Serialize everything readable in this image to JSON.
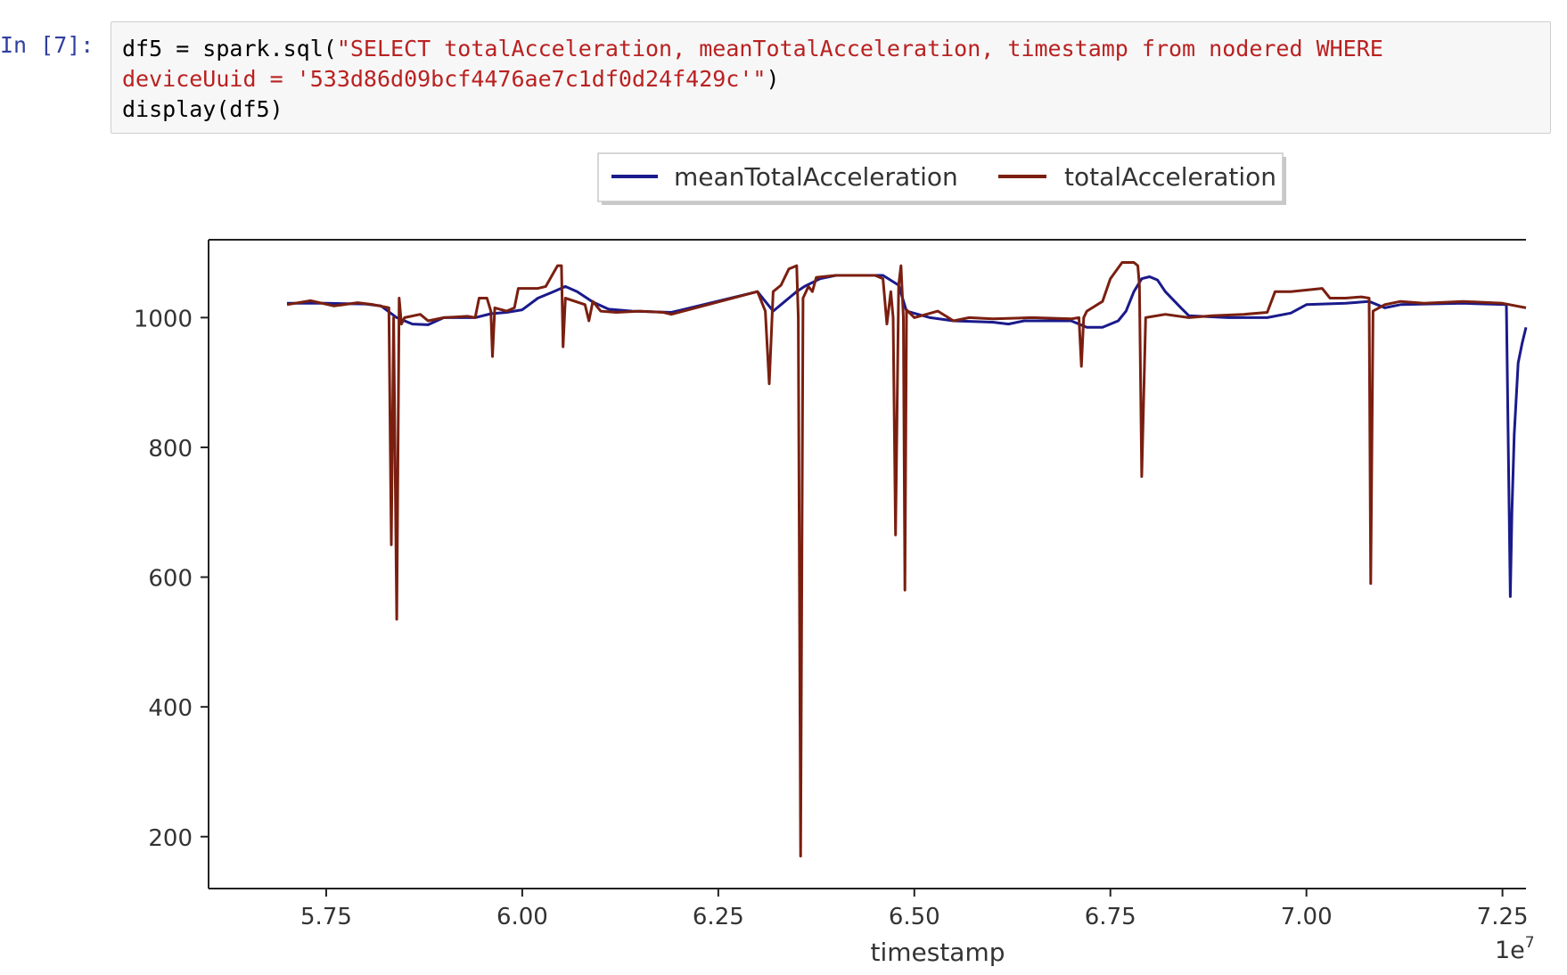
{
  "cell": {
    "prompt": "In [7]:",
    "code_lines": [
      [
        {
          "text": "df5 = spark.sql(",
          "kind": "plain"
        },
        {
          "text": "\"SELECT totalAcceleration, meanTotalAcceleration, timestamp from nodered WHERE",
          "kind": "string"
        }
      ],
      [
        {
          "text": "deviceUuid = '533d86d09bcf4476ae7c1df0d24f429c'\"",
          "kind": "string"
        },
        {
          "text": ")",
          "kind": "plain"
        }
      ],
      [
        {
          "text": "display(df5)",
          "kind": "plain"
        }
      ]
    ]
  },
  "chart_data": {
    "type": "line",
    "title": "",
    "xlabel": "timestamp",
    "ylabel": "",
    "x_offset_label": "1e7",
    "xlim": [
      5.6,
      7.28
    ],
    "ylim": [
      120,
      1120
    ],
    "xticks": [
      5.75,
      6.0,
      6.25,
      6.5,
      6.75,
      7.0,
      7.25
    ],
    "xtick_labels": [
      "5.75",
      "6.00",
      "6.25",
      "6.50",
      "6.75",
      "7.00",
      "7.25"
    ],
    "yticks": [
      200,
      400,
      600,
      800,
      1000
    ],
    "ytick_labels": [
      "200",
      "400",
      "600",
      "800",
      "1000"
    ],
    "grid": false,
    "legend_placement": "top-center, outside plot",
    "series": [
      {
        "name": "meanTotalAcceleration",
        "color": "#1a1a8c",
        "points": [
          [
            5.7,
            1022
          ],
          [
            5.75,
            1022
          ],
          [
            5.8,
            1021
          ],
          [
            5.82,
            1018
          ],
          [
            5.84,
            1000
          ],
          [
            5.86,
            990
          ],
          [
            5.88,
            989
          ],
          [
            5.9,
            1000
          ],
          [
            5.94,
            1000
          ],
          [
            5.96,
            1006
          ],
          [
            5.98,
            1008
          ],
          [
            6.0,
            1012
          ],
          [
            6.02,
            1030
          ],
          [
            6.04,
            1040
          ],
          [
            6.055,
            1048
          ],
          [
            6.07,
            1040
          ],
          [
            6.09,
            1024
          ],
          [
            6.11,
            1013
          ],
          [
            6.14,
            1010
          ],
          [
            6.19,
            1008
          ],
          [
            6.3,
            1040
          ],
          [
            6.31,
            1025
          ],
          [
            6.32,
            1010
          ],
          [
            6.33,
            1020
          ],
          [
            6.35,
            1040
          ],
          [
            6.36,
            1048
          ],
          [
            6.38,
            1060
          ],
          [
            6.4,
            1065
          ],
          [
            6.46,
            1065
          ],
          [
            6.48,
            1050
          ],
          [
            6.49,
            1010
          ],
          [
            6.52,
            1000
          ],
          [
            6.55,
            995
          ],
          [
            6.6,
            993
          ],
          [
            6.62,
            990
          ],
          [
            6.64,
            995
          ],
          [
            6.7,
            995
          ],
          [
            6.72,
            985
          ],
          [
            6.74,
            985
          ],
          [
            6.76,
            995
          ],
          [
            6.77,
            1010
          ],
          [
            6.78,
            1040
          ],
          [
            6.79,
            1060
          ],
          [
            6.8,
            1063
          ],
          [
            6.81,
            1058
          ],
          [
            6.82,
            1040
          ],
          [
            6.84,
            1015
          ],
          [
            6.85,
            1003
          ],
          [
            6.9,
            1000
          ],
          [
            6.95,
            1000
          ],
          [
            6.98,
            1007
          ],
          [
            7.0,
            1020
          ],
          [
            7.05,
            1022
          ],
          [
            7.08,
            1025
          ],
          [
            7.1,
            1015
          ],
          [
            7.12,
            1020
          ],
          [
            7.2,
            1022
          ],
          [
            7.255,
            1020
          ],
          [
            7.26,
            570
          ],
          [
            7.262,
            700
          ],
          [
            7.265,
            820
          ],
          [
            7.27,
            930
          ],
          [
            7.275,
            960
          ],
          [
            7.28,
            985
          ]
        ]
      },
      {
        "name": "totalAcceleration",
        "color": "#7a1f10",
        "points": [
          [
            5.7,
            1020
          ],
          [
            5.73,
            1026
          ],
          [
            5.76,
            1018
          ],
          [
            5.79,
            1023
          ],
          [
            5.81,
            1020
          ],
          [
            5.83,
            1015
          ],
          [
            5.833,
            650
          ],
          [
            5.836,
            1000
          ],
          [
            5.84,
            535
          ],
          [
            5.843,
            1030
          ],
          [
            5.846,
            990
          ],
          [
            5.85,
            1000
          ],
          [
            5.87,
            1005
          ],
          [
            5.88,
            995
          ],
          [
            5.9,
            1000
          ],
          [
            5.93,
            1002
          ],
          [
            5.94,
            1000
          ],
          [
            5.945,
            1030
          ],
          [
            5.955,
            1030
          ],
          [
            5.96,
            1010
          ],
          [
            5.962,
            940
          ],
          [
            5.965,
            1015
          ],
          [
            5.98,
            1010
          ],
          [
            5.99,
            1015
          ],
          [
            5.995,
            1045
          ],
          [
            6.02,
            1045
          ],
          [
            6.03,
            1048
          ],
          [
            6.045,
            1080
          ],
          [
            6.05,
            1080
          ],
          [
            6.052,
            955
          ],
          [
            6.055,
            1030
          ],
          [
            6.08,
            1020
          ],
          [
            6.085,
            995
          ],
          [
            6.09,
            1025
          ],
          [
            6.1,
            1010
          ],
          [
            6.12,
            1008
          ],
          [
            6.15,
            1010
          ],
          [
            6.18,
            1008
          ],
          [
            6.19,
            1005
          ],
          [
            6.3,
            1040
          ],
          [
            6.31,
            1010
          ],
          [
            6.315,
            898
          ],
          [
            6.32,
            1040
          ],
          [
            6.33,
            1050
          ],
          [
            6.34,
            1075
          ],
          [
            6.35,
            1080
          ],
          [
            6.352,
            1000
          ],
          [
            6.355,
            170
          ],
          [
            6.358,
            1030
          ],
          [
            6.36,
            1035
          ],
          [
            6.365,
            1048
          ],
          [
            6.37,
            1040
          ],
          [
            6.375,
            1062
          ],
          [
            6.4,
            1065
          ],
          [
            6.45,
            1065
          ],
          [
            6.46,
            1060
          ],
          [
            6.465,
            990
          ],
          [
            6.47,
            1040
          ],
          [
            6.473,
            1000
          ],
          [
            6.476,
            665
          ],
          [
            6.48,
            1050
          ],
          [
            6.483,
            1080
          ],
          [
            6.486,
            1000
          ],
          [
            6.488,
            580
          ],
          [
            6.49,
            1012
          ],
          [
            6.5,
            1000
          ],
          [
            6.53,
            1010
          ],
          [
            6.55,
            995
          ],
          [
            6.57,
            1000
          ],
          [
            6.6,
            998
          ],
          [
            6.65,
            1000
          ],
          [
            6.7,
            998
          ],
          [
            6.71,
            1000
          ],
          [
            6.713,
            925
          ],
          [
            6.716,
            1000
          ],
          [
            6.72,
            1010
          ],
          [
            6.74,
            1025
          ],
          [
            6.75,
            1060
          ],
          [
            6.765,
            1085
          ],
          [
            6.78,
            1085
          ],
          [
            6.785,
            1080
          ],
          [
            6.787,
            1050
          ],
          [
            6.79,
            755
          ],
          [
            6.795,
            1000
          ],
          [
            6.82,
            1005
          ],
          [
            6.85,
            1000
          ],
          [
            6.88,
            1003
          ],
          [
            6.92,
            1005
          ],
          [
            6.95,
            1008
          ],
          [
            6.96,
            1040
          ],
          [
            6.98,
            1040
          ],
          [
            7.02,
            1045
          ],
          [
            7.03,
            1030
          ],
          [
            7.05,
            1030
          ],
          [
            7.07,
            1032
          ],
          [
            7.08,
            1030
          ],
          [
            7.082,
            590
          ],
          [
            7.085,
            1010
          ],
          [
            7.1,
            1020
          ],
          [
            7.12,
            1025
          ],
          [
            7.15,
            1022
          ],
          [
            7.2,
            1025
          ],
          [
            7.25,
            1022
          ],
          [
            7.28,
            1015
          ]
        ]
      }
    ]
  }
}
